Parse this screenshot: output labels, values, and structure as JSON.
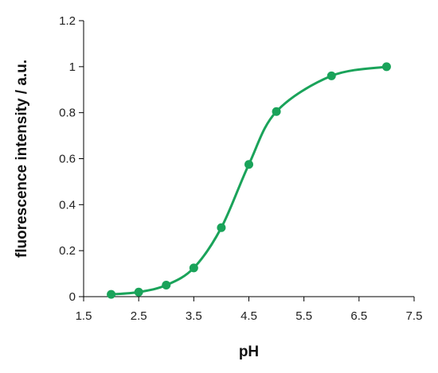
{
  "chart_data": {
    "type": "line",
    "title": "",
    "xlabel": "pH",
    "ylabel": "fluorescence intensity / a.u.",
    "xlim": [
      1.5,
      7.5
    ],
    "ylim": [
      0,
      1.2
    ],
    "x_ticks": [
      "1.5",
      "2.5",
      "3.5",
      "4.5",
      "5.5",
      "6.5",
      "7.5"
    ],
    "y_ticks": [
      "0",
      "0.2",
      "0.4",
      "0.6",
      "0.8",
      "1",
      "1.2"
    ],
    "grid": false,
    "legend": "none",
    "series": [
      {
        "color": "#1aa35a",
        "x": [
          2,
          2.5,
          3,
          3.5,
          4,
          4.5,
          5,
          6,
          7
        ],
        "y": [
          0.01,
          0.02,
          0.05,
          0.125,
          0.3,
          0.575,
          0.805,
          0.96,
          1.0
        ]
      }
    ]
  }
}
